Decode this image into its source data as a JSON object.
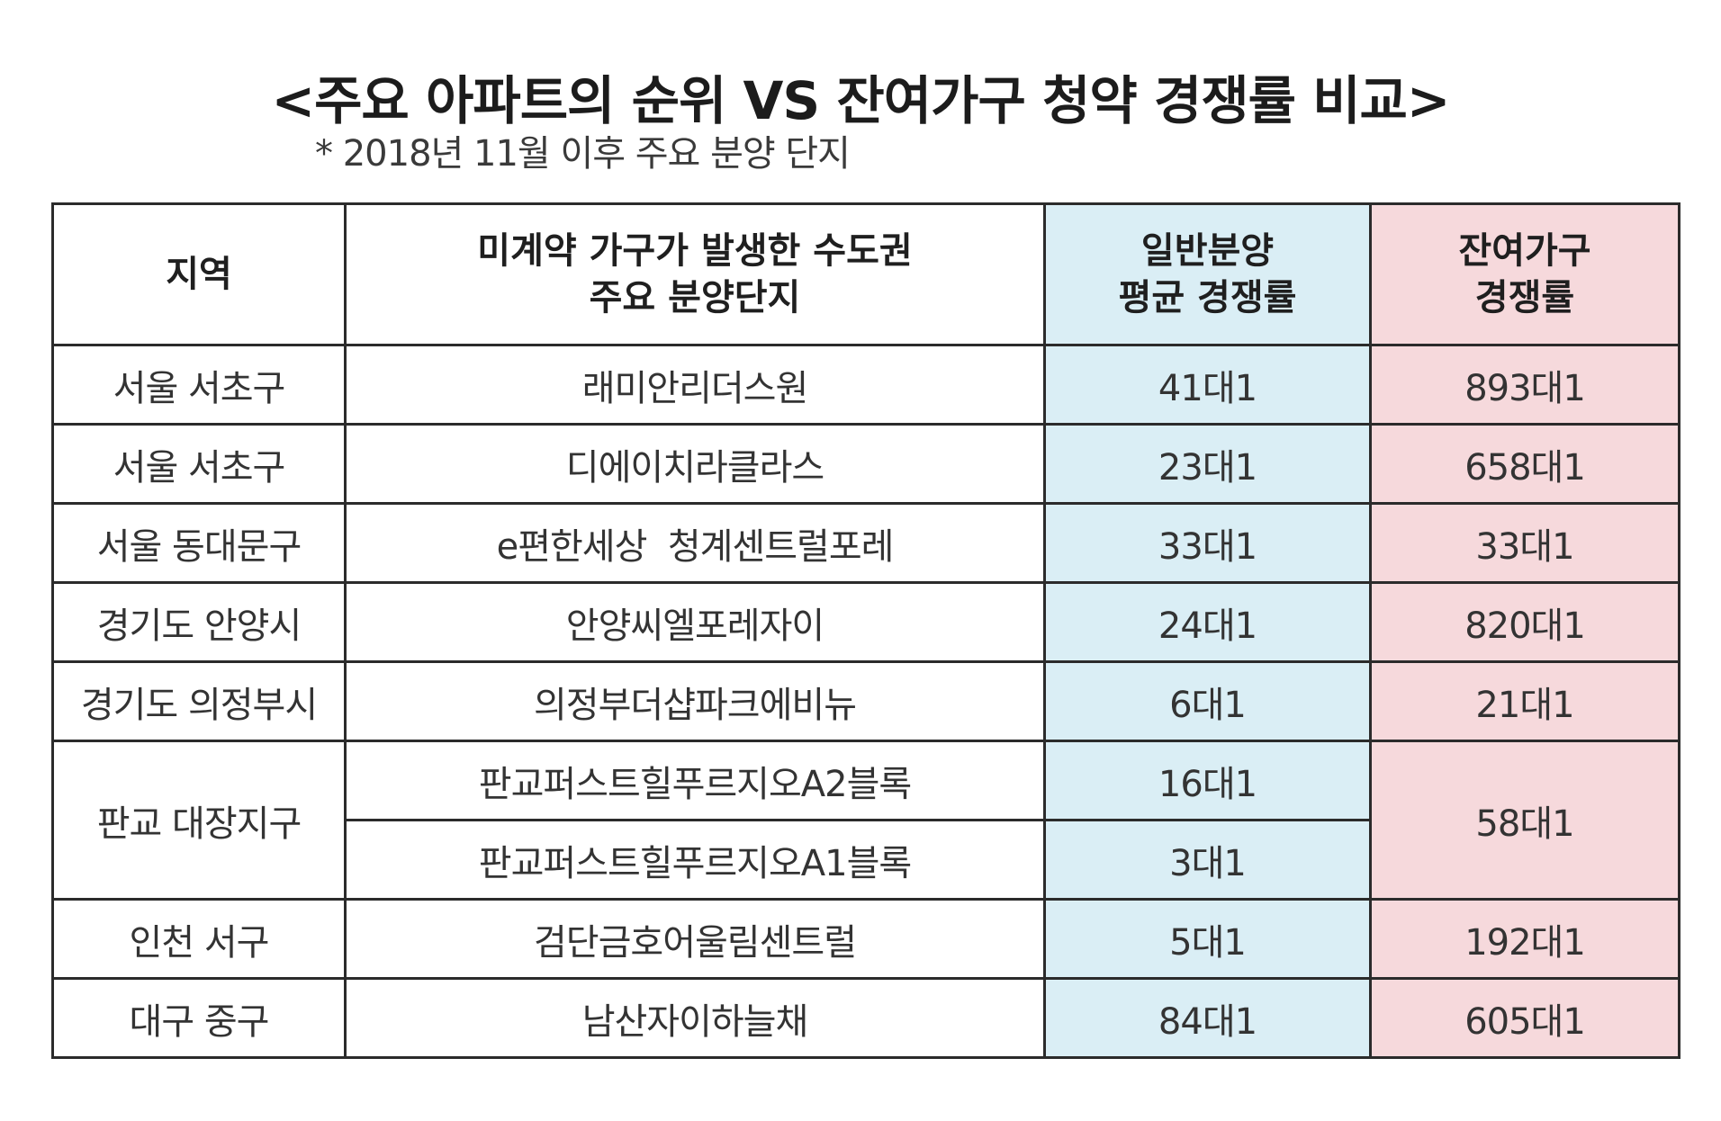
{
  "title": "<주요 아파트의 순위 VS 잔여가구 청약 경쟁률 비교>",
  "subtitle": "* 2018년 11월 이후 주요 분양 단지",
  "colors": {
    "general_column_bg": "#daeef5",
    "remaining_column_bg": "#f6d9dc",
    "border": "#2b2b2b"
  },
  "table": {
    "headers": {
      "region": "지역",
      "complex_line1": "미계약 가구가 발생한 수도권",
      "complex_line2": "주요 분양단지",
      "general_line1": "일반분양",
      "general_line2": "평균 경쟁률",
      "remaining_line1": "잔여가구",
      "remaining_line2": "경쟁률"
    },
    "rows": [
      {
        "region": "서울 서초구",
        "complex": "래미안리더스원",
        "general": "41대1",
        "remaining": "893대1"
      },
      {
        "region": "서울 서초구",
        "complex": "디에이치라클라스",
        "general": "23대1",
        "remaining": "658대1"
      },
      {
        "region": "서울 동대문구",
        "complex": "e편한세상  청계센트럴포레",
        "general": "33대1",
        "remaining": "33대1"
      },
      {
        "region": "경기도 안양시",
        "complex": "안양씨엘포레자이",
        "general": "24대1",
        "remaining": "820대1"
      },
      {
        "region": "경기도 의정부시",
        "complex": "의정부더샵파크에비뉴",
        "general": "6대1",
        "remaining": "21대1"
      },
      {
        "region": "판교 대장지구",
        "complex": "판교퍼스트힐푸르지오A2블록",
        "general": "16대1",
        "remaining": "58대1"
      },
      {
        "region": "",
        "complex": "판교퍼스트힐푸르지오A1블록",
        "general": "3대1",
        "remaining": ""
      },
      {
        "region": "인천 서구",
        "complex": "검단금호어울림센트럴",
        "general": "5대1",
        "remaining": "192대1"
      },
      {
        "region": "대구 중구",
        "complex": "남산자이하늘채",
        "general": "84대1",
        "remaining": "605대1"
      }
    ]
  }
}
